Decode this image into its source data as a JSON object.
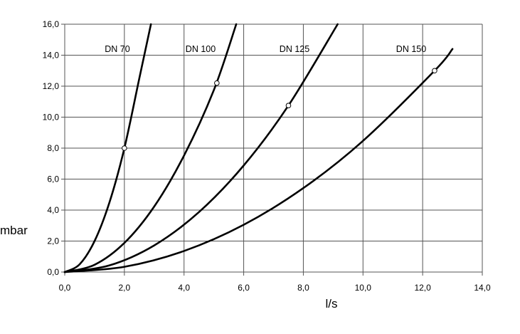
{
  "chart_data": {
    "type": "line",
    "title": "",
    "xlabel": "l/s",
    "ylabel": "mbar",
    "xlim": [
      0,
      14
    ],
    "ylim": [
      0,
      16
    ],
    "x_ticks": [
      "0,0",
      "2,0",
      "4,0",
      "6,0",
      "8,0",
      "10,0",
      "12,0",
      "14,0"
    ],
    "y_ticks": [
      "0,0",
      "2,0",
      "4,0",
      "6,0",
      "8,0",
      "10,0",
      "12,0",
      "14,0",
      "16,0"
    ],
    "grid": true,
    "series": [
      {
        "name": "DN 70",
        "x": [
          0,
          0.5,
          1.0,
          1.5,
          2.0,
          2.5,
          2.89
        ],
        "y": [
          0,
          0.5,
          2.0,
          4.5,
          8.0,
          12.5,
          16.0
        ],
        "marker": {
          "x": 2.0,
          "y": 8.0
        }
      },
      {
        "name": "DN 100",
        "x": [
          0,
          1.0,
          2.0,
          3.0,
          4.0,
          5.0,
          5.75
        ],
        "y": [
          0,
          0.47,
          1.88,
          4.23,
          7.52,
          11.75,
          16.0
        ],
        "marker": {
          "x": 5.1,
          "y": 12.2
        }
      },
      {
        "name": "DN 125",
        "x": [
          0,
          1.5,
          3.0,
          4.5,
          6.0,
          7.5,
          9.15
        ],
        "y": [
          0,
          0.43,
          1.72,
          3.87,
          6.88,
          10.75,
          16.0
        ],
        "marker": {
          "x": 7.5,
          "y": 10.75
        }
      },
      {
        "name": "DN 150",
        "x": [
          0,
          2.0,
          4.0,
          6.0,
          8.0,
          10.0,
          12.4,
          13.0
        ],
        "y": [
          0,
          0.34,
          1.36,
          3.05,
          5.42,
          8.47,
          13.0,
          14.4
        ],
        "marker": {
          "x": 12.4,
          "y": 13.0
        }
      }
    ]
  }
}
